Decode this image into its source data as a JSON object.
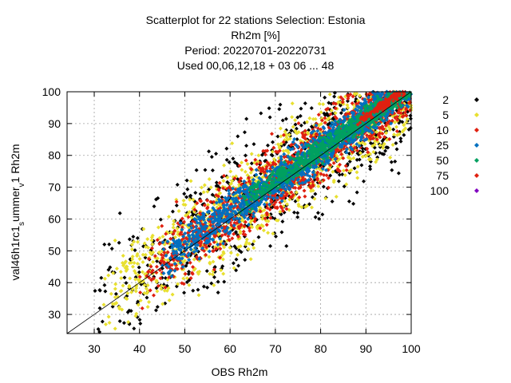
{
  "chart_data": {
    "type": "scatter",
    "title": [
      "Scatterplot for   22 stations Selection: Estonia",
      "Rh2m [%]",
      "Period: 20220701-20220731",
      "Used  00,06,12,18  + 03 06 ... 48"
    ],
    "xlabel": "OBS Rh2m",
    "ylabel": "val46h1rc1_summer_v1 Rh2m",
    "ylabel_parts": {
      "prefix": "val46h1rc1",
      "sub": "s",
      "suffix": "ummer",
      "sub2": "v",
      "tail": "1 Rh2m"
    },
    "xlim": [
      24,
      100
    ],
    "ylim": [
      24,
      100
    ],
    "xticks": [
      30,
      40,
      50,
      60,
      70,
      80,
      90,
      100
    ],
    "yticks": [
      30,
      40,
      50,
      60,
      70,
      80,
      90,
      100
    ],
    "grid": true,
    "diagonal_reference_line": true,
    "legend_placement": "right",
    "series": [
      {
        "name": "2",
        "color": "#000000",
        "spread": 14.0,
        "min_obs": 30
      },
      {
        "name": "5",
        "color": "#e8e030",
        "spread": 10.5,
        "min_obs": 32
      },
      {
        "name": "10",
        "color": "#e02010",
        "spread": 7.5,
        "min_obs": 40
      },
      {
        "name": "25",
        "color": "#0070c0",
        "spread": 4.5,
        "min_obs": 45
      },
      {
        "name": "50",
        "color": "#00a060",
        "spread": 2.5,
        "min_obs": 62
      },
      {
        "name": "75",
        "color": "#e02010",
        "spread": 1.2,
        "min_obs": 88
      },
      {
        "name": "100",
        "color": "#8000c0",
        "spread": 0.0,
        "min_obs": 101
      }
    ]
  }
}
